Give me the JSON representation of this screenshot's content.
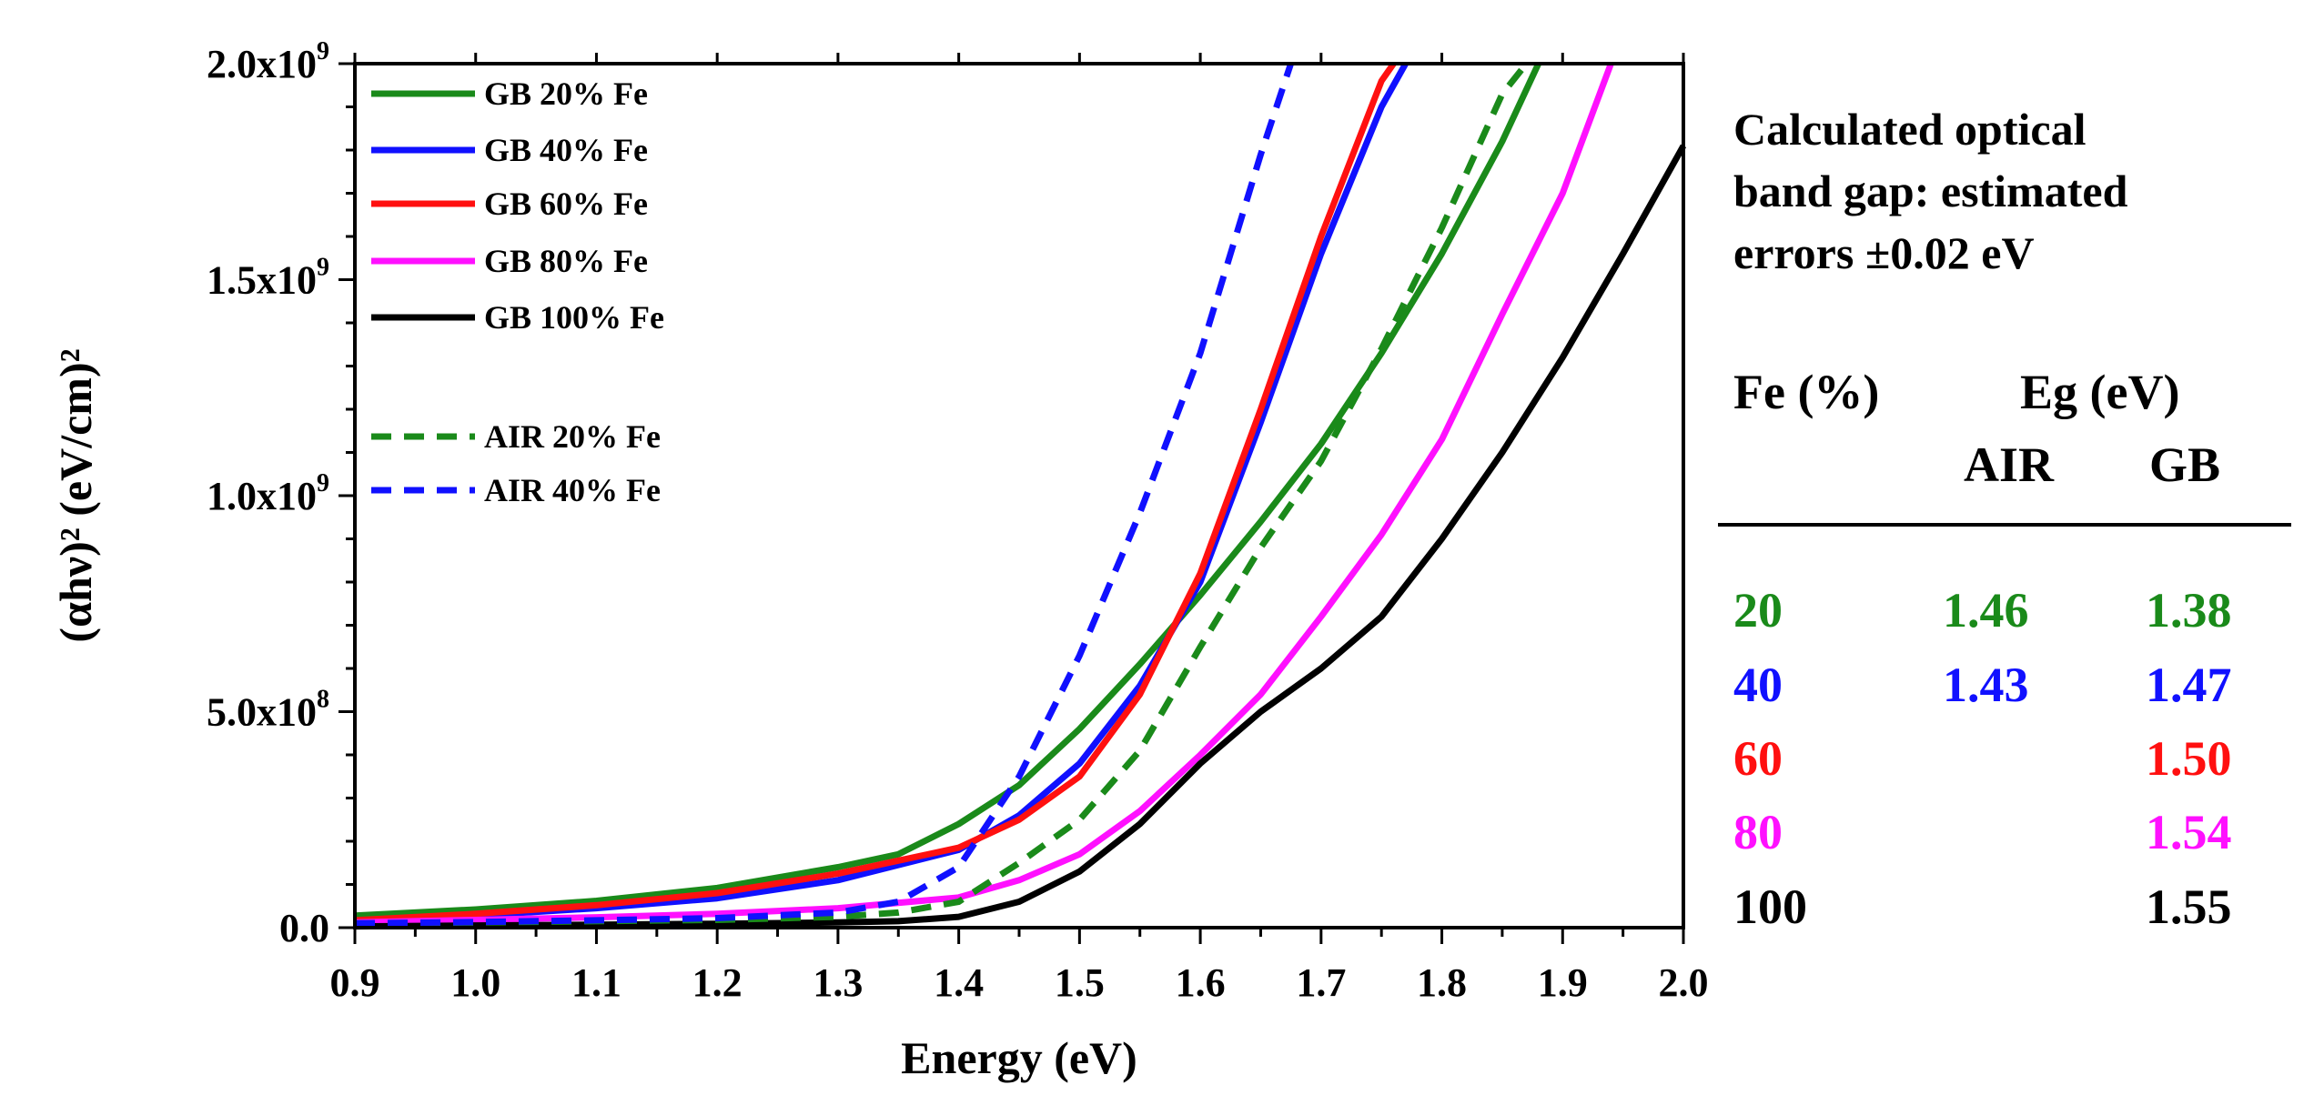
{
  "chart_data": {
    "type": "line",
    "xlabel": "Energy (eV)",
    "ylabel": "(αhν)² (eV/cm)²",
    "xlim": [
      0.9,
      2.0
    ],
    "ylim": [
      0,
      2000000000
    ],
    "x_ticks": [
      "0.9",
      "1.0",
      "1.1",
      "1.2",
      "1.3",
      "1.4",
      "1.5",
      "1.6",
      "1.7",
      "1.8",
      "1.9",
      "2.0"
    ],
    "y_ticks": [
      {
        "base": "0.0",
        "exp": ""
      },
      {
        "base": "5.0x10",
        "exp": "8"
      },
      {
        "base": "1.0x10",
        "exp": "9"
      },
      {
        "base": "1.5x10",
        "exp": "9"
      },
      {
        "base": "2.0x10",
        "exp": "9"
      }
    ],
    "legend_position": "top-left",
    "series": [
      {
        "name": "GB 20% Fe",
        "color": "#1a8a1a",
        "style": "solid",
        "x": [
          0.9,
          1.0,
          1.1,
          1.2,
          1.3,
          1.35,
          1.4,
          1.45,
          1.5,
          1.55,
          1.6,
          1.65,
          1.7,
          1.75,
          1.8,
          1.85,
          1.88
        ],
        "y": [
          28000000,
          42000000,
          62000000,
          92000000,
          140000000,
          170000000,
          240000000,
          330000000,
          460000000,
          610000000,
          770000000,
          940000000,
          1120000000,
          1330000000,
          1560000000,
          1820000000,
          2000000000
        ]
      },
      {
        "name": "GB 40% Fe",
        "color": "#1010ff",
        "style": "solid",
        "x": [
          0.9,
          1.0,
          1.1,
          1.2,
          1.3,
          1.4,
          1.45,
          1.5,
          1.55,
          1.6,
          1.65,
          1.7,
          1.75,
          1.77
        ],
        "y": [
          15000000,
          28000000,
          45000000,
          68000000,
          110000000,
          180000000,
          260000000,
          380000000,
          560000000,
          800000000,
          1170000000,
          1560000000,
          1900000000,
          2000000000
        ]
      },
      {
        "name": "GB 60% Fe",
        "color": "#ff1010",
        "style": "solid",
        "x": [
          0.9,
          1.0,
          1.1,
          1.2,
          1.3,
          1.4,
          1.45,
          1.5,
          1.55,
          1.6,
          1.65,
          1.7,
          1.75,
          1.76
        ],
        "y": [
          17000000,
          32000000,
          52000000,
          80000000,
          125000000,
          185000000,
          250000000,
          350000000,
          540000000,
          820000000,
          1200000000,
          1600000000,
          1960000000,
          2000000000
        ]
      },
      {
        "name": "GB 80% Fe",
        "color": "#ff10ff",
        "style": "solid",
        "x": [
          0.9,
          1.0,
          1.1,
          1.2,
          1.3,
          1.4,
          1.45,
          1.5,
          1.55,
          1.6,
          1.65,
          1.7,
          1.75,
          1.8,
          1.85,
          1.9,
          1.94
        ],
        "y": [
          12000000,
          18000000,
          24000000,
          32000000,
          45000000,
          70000000,
          110000000,
          170000000,
          270000000,
          400000000,
          540000000,
          720000000,
          910000000,
          1130000000,
          1420000000,
          1700000000,
          2000000000
        ]
      },
      {
        "name": "GB 100% Fe",
        "color": "#000000",
        "style": "solid",
        "x": [
          0.9,
          1.0,
          1.1,
          1.2,
          1.3,
          1.35,
          1.4,
          1.45,
          1.5,
          1.55,
          1.6,
          1.65,
          1.7,
          1.75,
          1.8,
          1.85,
          1.9,
          1.95,
          2.0
        ],
        "y": [
          3000000,
          5000000,
          7000000,
          9000000,
          12000000,
          15000000,
          25000000,
          60000000,
          130000000,
          240000000,
          380000000,
          500000000,
          600000000,
          720000000,
          900000000,
          1100000000,
          1320000000,
          1560000000,
          1810000000
        ]
      },
      {
        "name": "AIR 20% Fe",
        "color": "#1a8a1a",
        "style": "dashed",
        "x": [
          0.9,
          1.0,
          1.1,
          1.2,
          1.3,
          1.35,
          1.4,
          1.45,
          1.5,
          1.55,
          1.6,
          1.65,
          1.7,
          1.75,
          1.8,
          1.85,
          1.87
        ],
        "y": [
          10000000,
          12000000,
          15000000,
          18000000,
          25000000,
          35000000,
          60000000,
          150000000,
          250000000,
          410000000,
          650000000,
          880000000,
          1080000000,
          1340000000,
          1620000000,
          1930000000,
          2000000000
        ]
      },
      {
        "name": "AIR 40% Fe",
        "color": "#1010ff",
        "style": "dashed",
        "x": [
          0.9,
          1.0,
          1.1,
          1.2,
          1.3,
          1.35,
          1.4,
          1.45,
          1.5,
          1.55,
          1.6,
          1.65,
          1.675
        ],
        "y": [
          10000000,
          13000000,
          17000000,
          22000000,
          35000000,
          60000000,
          140000000,
          350000000,
          630000000,
          960000000,
          1330000000,
          1790000000,
          2000000000
        ]
      }
    ]
  },
  "side_panel": {
    "note_lines": [
      "Calculated optical",
      "band gap: estimated",
      "errors ±0.02 eV"
    ],
    "col_fe": "Fe (%)",
    "col_eg": "Eg (eV)",
    "col_air": "AIR",
    "col_gb": "GB",
    "rows": [
      {
        "fe": "20",
        "air": "1.46",
        "gb": "1.38",
        "color": "#1a8a1a"
      },
      {
        "fe": "40",
        "air": "1.43",
        "gb": "1.47",
        "color": "#1010ff"
      },
      {
        "fe": "60",
        "air": "",
        "gb": "1.50",
        "color": "#ff1010"
      },
      {
        "fe": "80",
        "air": "",
        "gb": "1.54",
        "color": "#ff10ff"
      },
      {
        "fe": "100",
        "air": "",
        "gb": "1.55",
        "color": "#000000"
      }
    ]
  }
}
